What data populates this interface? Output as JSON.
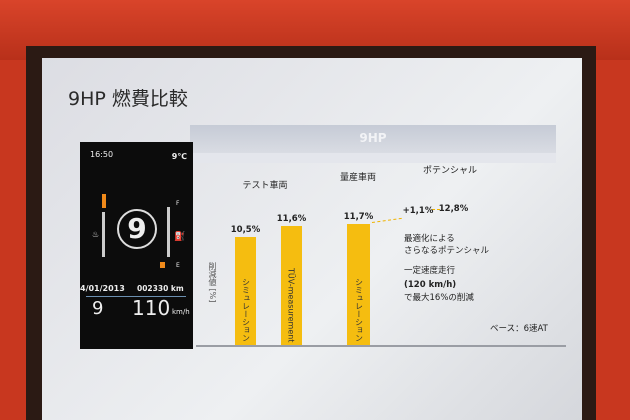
{
  "slide": {
    "title": "9HP 燃費比較",
    "band_label": "9HP"
  },
  "dashboard": {
    "time": "16:50",
    "temperature": "9℃",
    "gear": "9",
    "date": "4/01/2013",
    "odometer": "002330 km",
    "gear_small": "9",
    "speed": "110",
    "speed_unit": "km/h",
    "fuel_full": "F",
    "fuel_empty": "E"
  },
  "chart_data": {
    "type": "bar",
    "ylabel": "削減値 [%]",
    "group_labels": [
      "テスト車両",
      "量産車両",
      "ポテンシャル"
    ],
    "bars": [
      {
        "group": "テスト車両",
        "label": "シミュレーション",
        "value": 10.5,
        "value_label": "10,5%"
      },
      {
        "group": "テスト車両",
        "label": "TÜV-measurement",
        "value": 11.6,
        "value_label": "11,6%"
      },
      {
        "group": "量産車両",
        "label": "シミュレーション",
        "value": 11.7,
        "value_label": "11,7%"
      },
      {
        "group": "ポテンシャル",
        "label": "",
        "value": 12.8,
        "base": 11.7,
        "value_label": "12,8%"
      }
    ],
    "increment_label": "+1,1%",
    "annotations": [
      "最適化による",
      "さらなるポテンシャル",
      "一定速度走行",
      "(120 km/h)",
      "で最大16%の削減"
    ],
    "base_note": "ベース：6速AT",
    "bar_color": "#f5bd10"
  }
}
